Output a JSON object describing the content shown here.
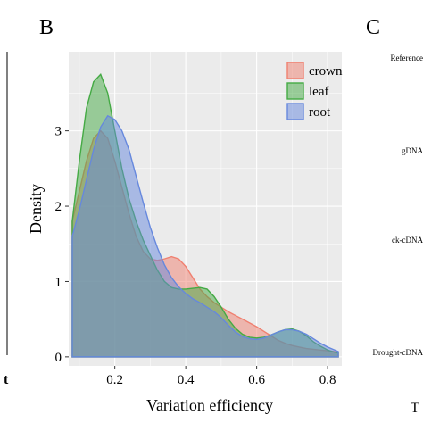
{
  "panel_b_letter": "B",
  "panel_c_letter": "C",
  "left_clip_text": "t",
  "right_clip_text": "T",
  "right_panel_labels": [
    "Reference",
    "gDNA",
    "ck-cDNA",
    "Drought-cDNA"
  ],
  "colors": {
    "crown": "#f08070",
    "leaf": "#44aa44",
    "root": "#6688dd",
    "panel_bg": "#ebebeb",
    "grid": "#ffffff"
  },
  "chart_data": {
    "type": "area",
    "xlabel": "Variation efficiency",
    "ylabel": "Density",
    "xlim": [
      0.07,
      0.84
    ],
    "ylim": [
      -0.12,
      4.05
    ],
    "x_ticks": [
      "0.2",
      "0.4",
      "0.6",
      "0.8"
    ],
    "x_tick_values": [
      0.2,
      0.4,
      0.6,
      0.8
    ],
    "y_ticks": [
      "0",
      "1",
      "2",
      "3"
    ],
    "y_tick_values": [
      0,
      1,
      2,
      3
    ],
    "grid": true,
    "legend_position": "top-right",
    "series": [
      {
        "name": "crown",
        "x": [
          0.08,
          0.1,
          0.12,
          0.14,
          0.16,
          0.18,
          0.2,
          0.22,
          0.24,
          0.26,
          0.28,
          0.3,
          0.32,
          0.34,
          0.36,
          0.38,
          0.4,
          0.42,
          0.44,
          0.46,
          0.48,
          0.5,
          0.52,
          0.54,
          0.56,
          0.58,
          0.6,
          0.62,
          0.64,
          0.66,
          0.68,
          0.7,
          0.72,
          0.74,
          0.76,
          0.78,
          0.8,
          0.82,
          0.83
        ],
        "values": [
          1.8,
          2.2,
          2.6,
          2.9,
          3.0,
          2.9,
          2.6,
          2.25,
          1.9,
          1.6,
          1.4,
          1.3,
          1.28,
          1.3,
          1.33,
          1.3,
          1.2,
          1.05,
          0.9,
          0.8,
          0.72,
          0.66,
          0.6,
          0.55,
          0.5,
          0.45,
          0.4,
          0.34,
          0.28,
          0.22,
          0.18,
          0.15,
          0.13,
          0.11,
          0.1,
          0.09,
          0.08,
          0.07,
          0.06
        ]
      },
      {
        "name": "leaf",
        "x": [
          0.08,
          0.1,
          0.12,
          0.14,
          0.16,
          0.18,
          0.2,
          0.22,
          0.24,
          0.26,
          0.28,
          0.3,
          0.32,
          0.34,
          0.36,
          0.38,
          0.4,
          0.42,
          0.44,
          0.46,
          0.48,
          0.5,
          0.52,
          0.54,
          0.56,
          0.58,
          0.6,
          0.62,
          0.64,
          0.66,
          0.68,
          0.7,
          0.72,
          0.74,
          0.76,
          0.78,
          0.8,
          0.82,
          0.83
        ],
        "values": [
          1.8,
          2.6,
          3.3,
          3.65,
          3.75,
          3.5,
          3.0,
          2.5,
          2.1,
          1.8,
          1.55,
          1.35,
          1.15,
          1.0,
          0.92,
          0.9,
          0.9,
          0.91,
          0.92,
          0.9,
          0.8,
          0.66,
          0.5,
          0.38,
          0.3,
          0.26,
          0.25,
          0.26,
          0.29,
          0.33,
          0.36,
          0.37,
          0.34,
          0.28,
          0.2,
          0.14,
          0.09,
          0.06,
          0.05
        ]
      },
      {
        "name": "root",
        "x": [
          0.08,
          0.1,
          0.12,
          0.14,
          0.16,
          0.18,
          0.2,
          0.22,
          0.24,
          0.26,
          0.28,
          0.3,
          0.32,
          0.34,
          0.36,
          0.38,
          0.4,
          0.42,
          0.44,
          0.46,
          0.48,
          0.5,
          0.52,
          0.54,
          0.56,
          0.58,
          0.6,
          0.62,
          0.64,
          0.66,
          0.68,
          0.7,
          0.72,
          0.74,
          0.76,
          0.78,
          0.8,
          0.82,
          0.83
        ],
        "values": [
          1.6,
          1.95,
          2.35,
          2.75,
          3.05,
          3.2,
          3.15,
          3.0,
          2.75,
          2.4,
          2.05,
          1.72,
          1.45,
          1.22,
          1.05,
          0.93,
          0.84,
          0.77,
          0.72,
          0.66,
          0.6,
          0.52,
          0.42,
          0.33,
          0.27,
          0.24,
          0.23,
          0.25,
          0.29,
          0.33,
          0.36,
          0.36,
          0.34,
          0.3,
          0.24,
          0.18,
          0.13,
          0.09,
          0.07
        ]
      }
    ]
  }
}
